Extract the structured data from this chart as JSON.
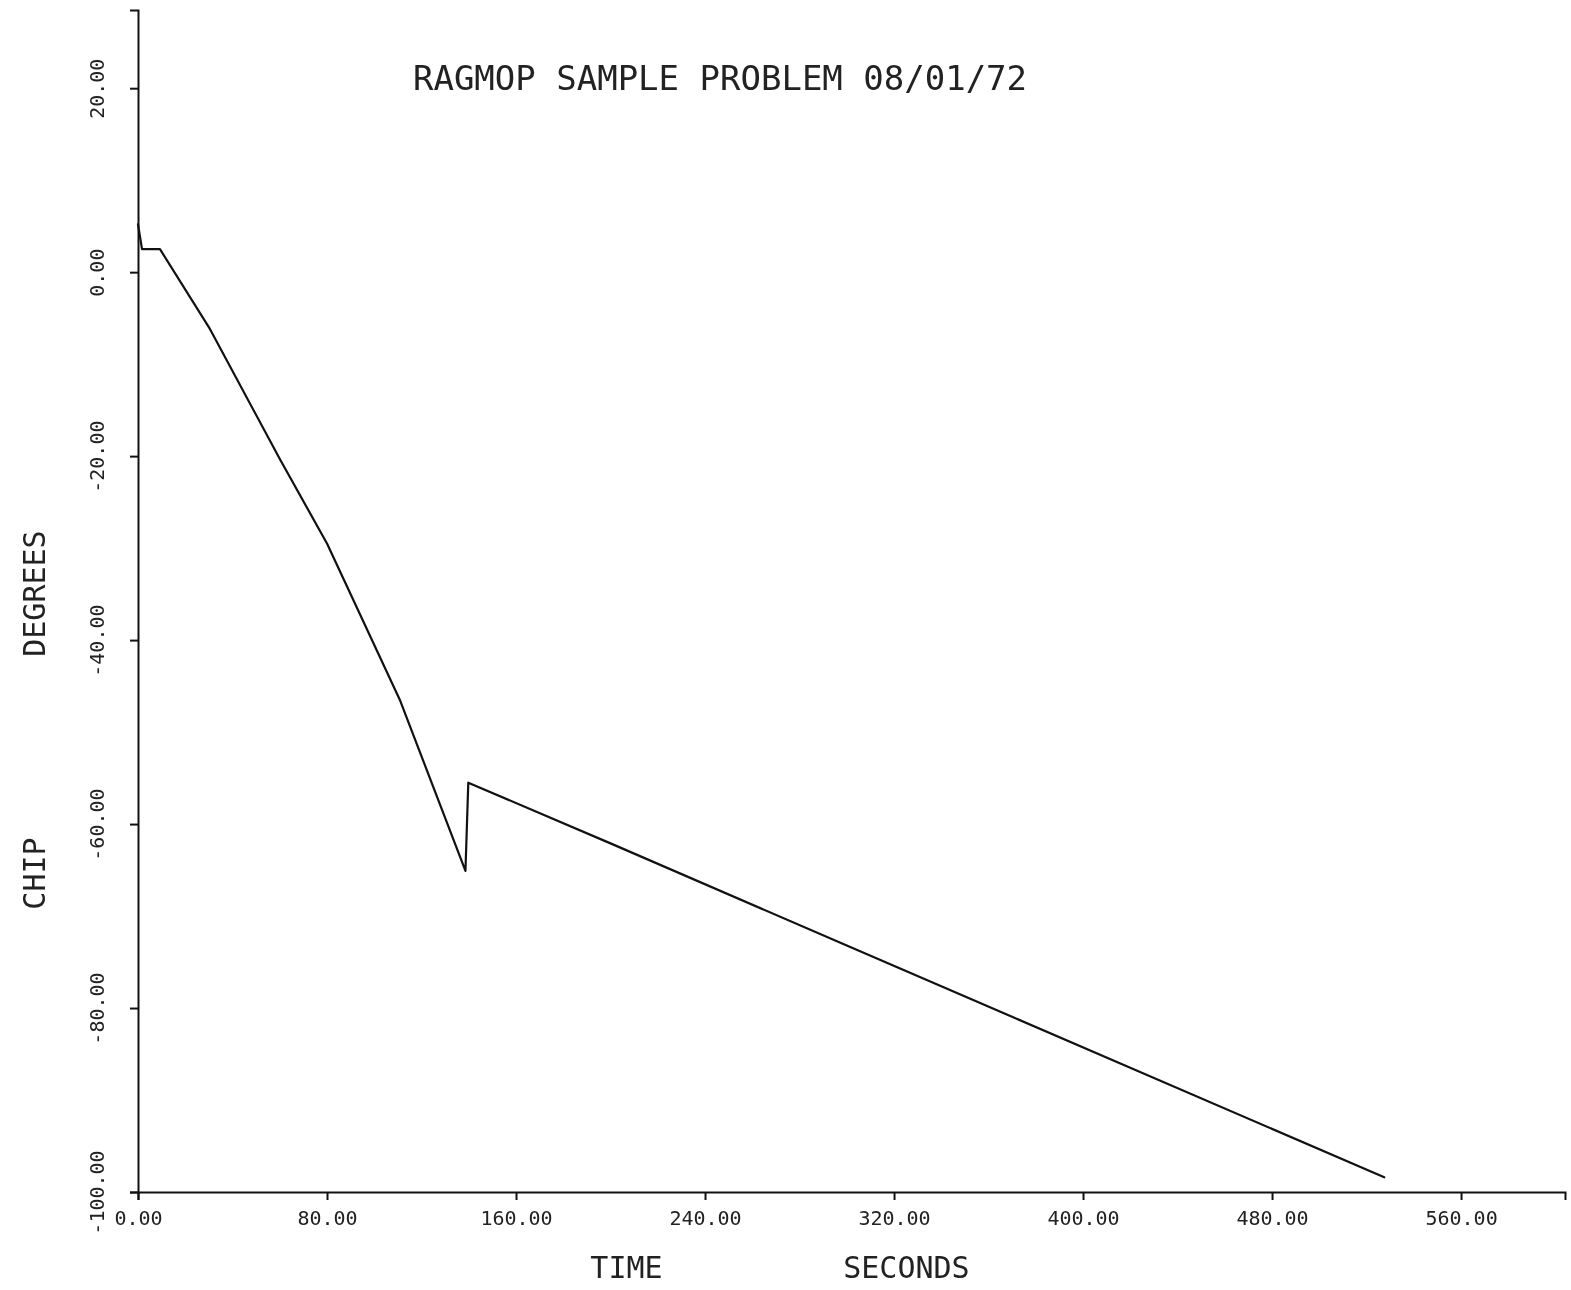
{
  "chart_data": {
    "type": "line",
    "title": "RAGMOP SAMPLE PROBLEM 08/01/72",
    "xlabel": "TIME          SECONDS",
    "ylabel": "CHIP          DEGREES",
    "x": [
      0,
      1.7,
      9.3,
      30.5,
      60.2,
      80,
      111,
      138.6,
      139.8,
      200,
      300,
      527.5
    ],
    "series": [
      {
        "color": "#111111",
        "values": [
          5.2,
          2.5,
          2.5,
          -6.2,
          -20.4,
          -29.5,
          -46.6,
          -65.1,
          -55.5,
          -62.1,
          -73.2,
          -98.4
        ]
      }
    ],
    "xlim": [
      0,
      604
    ],
    "ylim": [
      -100,
      28.5
    ],
    "xticks": [
      {
        "value": 0,
        "label": "0.00"
      },
      {
        "value": 80,
        "label": "80.00"
      },
      {
        "value": 160,
        "label": "160.00"
      },
      {
        "value": 240,
        "label": "240.00"
      },
      {
        "value": 320,
        "label": "320.00"
      },
      {
        "value": 400,
        "label": "400.00"
      },
      {
        "value": 480,
        "label": "480.00"
      },
      {
        "value": 560,
        "label": "560.00"
      }
    ],
    "yticks": [
      {
        "value": -100,
        "label": "-100.00"
      },
      {
        "value": -80,
        "label": "-80.00"
      },
      {
        "value": -60,
        "label": "-60.00"
      },
      {
        "value": -40,
        "label": "-40.00"
      },
      {
        "value": -20,
        "label": "-20.00"
      },
      {
        "value": 0,
        "label": "0.00"
      },
      {
        "value": 20,
        "label": "20.00"
      }
    ],
    "grid": false
  }
}
